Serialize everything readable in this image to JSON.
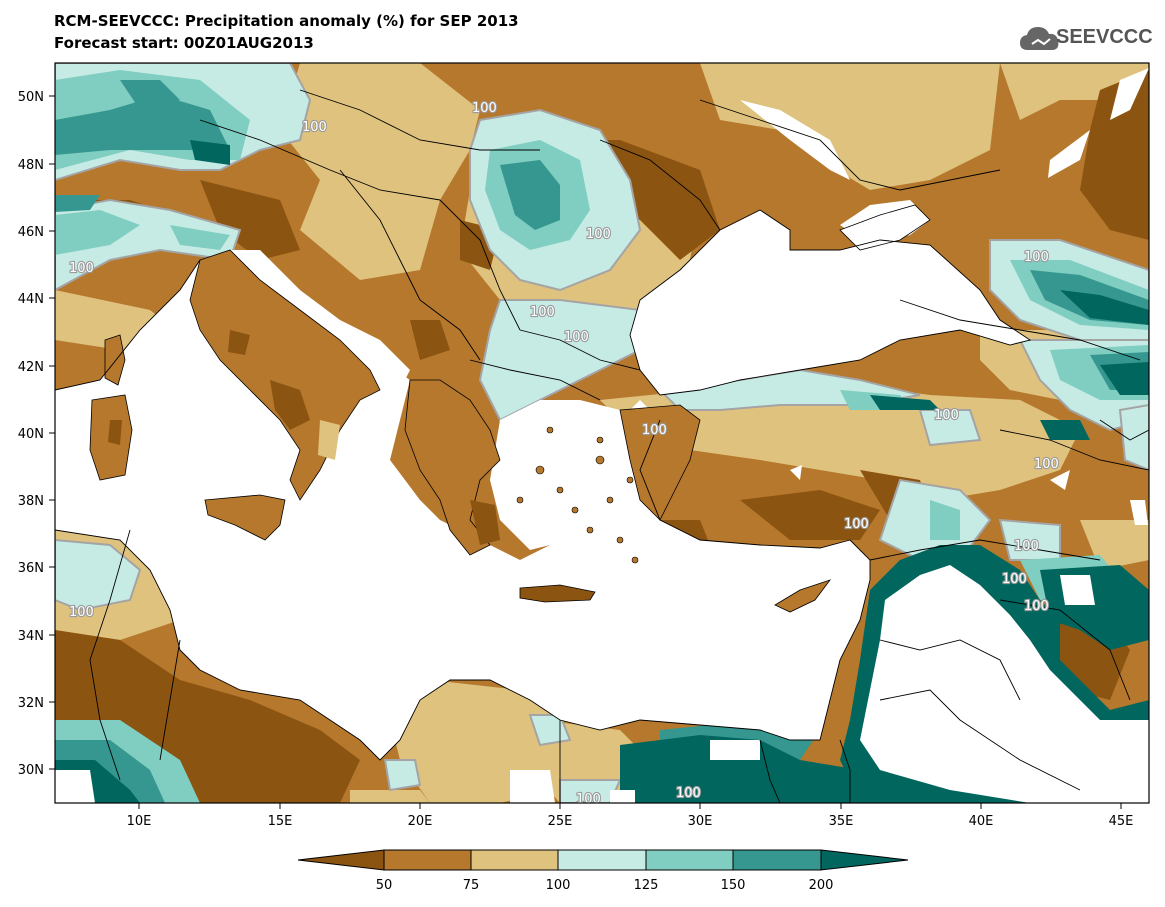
{
  "title": {
    "line1": "RCM-SEEVCCC: Precipitation anomaly (%) for SEP 2013",
    "line2": "Forecast start: 00Z01AUG2013"
  },
  "logo": {
    "text": "SEEVCCC",
    "icon": "cloud-icon"
  },
  "map": {
    "lon_range": [
      7,
      46
    ],
    "lat_range": [
      29,
      51
    ],
    "lon_ticks": [
      "10E",
      "15E",
      "20E",
      "25E",
      "30E",
      "35E",
      "40E",
      "45E"
    ],
    "lat_ticks": [
      "50N",
      "48N",
      "46N",
      "44N",
      "42N",
      "40N",
      "38N",
      "36N",
      "34N",
      "32N",
      "30N"
    ],
    "contour_label": "100",
    "colors": {
      "below_50": "#8c5411",
      "50_75": "#b5782d",
      "75_100": "#dfc27e",
      "100_125": "#c6ebe5",
      "125_150": "#80cdc1",
      "150_200": "#35978f",
      "above_200": "#01665e",
      "contour": "#a4a4a4",
      "sea": "#ffffff"
    }
  },
  "legend": {
    "labels": [
      "50",
      "75",
      "100",
      "125",
      "150",
      "200"
    ]
  }
}
